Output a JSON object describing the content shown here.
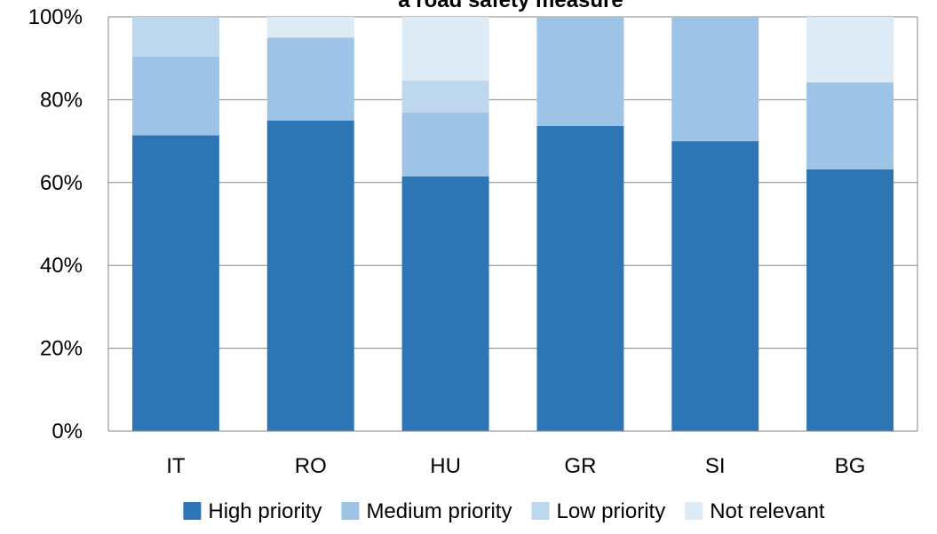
{
  "chart_data": {
    "type": "bar",
    "stacked": true,
    "percent": true,
    "title": "a road safety measure",
    "xlabel": "",
    "ylabel": "",
    "ylim": [
      0,
      100
    ],
    "yticks": [
      "0%",
      "20%",
      "40%",
      "60%",
      "80%",
      "100%"
    ],
    "grid": true,
    "legend": "bottom",
    "categories": [
      "IT",
      "RO",
      "HU",
      "GR",
      "SI",
      "BG"
    ],
    "series": [
      {
        "name": "High priority",
        "color": "#2e75b6",
        "values": [
          71.4,
          75.0,
          61.5,
          73.7,
          70.0,
          63.2
        ]
      },
      {
        "name": "Medium priority",
        "color": "#9dc3e6",
        "values": [
          19.0,
          20.0,
          15.4,
          26.3,
          30.0,
          21.0
        ]
      },
      {
        "name": "Low priority",
        "color": "#bdd7ee",
        "values": [
          9.6,
          0.0,
          7.7,
          0.0,
          0.0,
          0.0
        ]
      },
      {
        "name": "Not relevant",
        "color": "#ddebf7",
        "values": [
          0.0,
          5.0,
          15.4,
          0.0,
          0.0,
          15.8
        ]
      }
    ]
  }
}
